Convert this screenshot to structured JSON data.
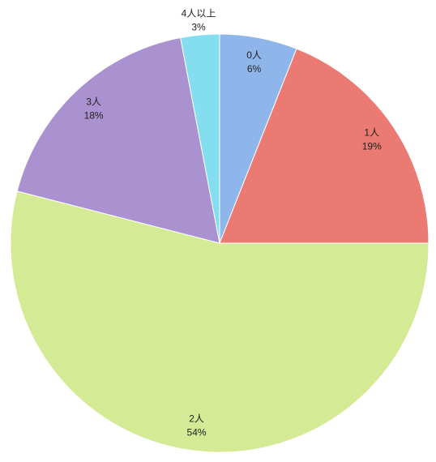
{
  "chart_data": {
    "type": "pie",
    "categories": [
      "0人",
      "1人",
      "2人",
      "3人",
      "4人以上"
    ],
    "values": [
      6,
      19,
      54,
      18,
      3
    ],
    "value_labels": [
      "6%",
      "19%",
      "54%",
      "18%",
      "3%"
    ],
    "colors": [
      "#8fb6ea",
      "#ea7a72",
      "#d4ea94",
      "#a992cf",
      "#84def0"
    ]
  }
}
